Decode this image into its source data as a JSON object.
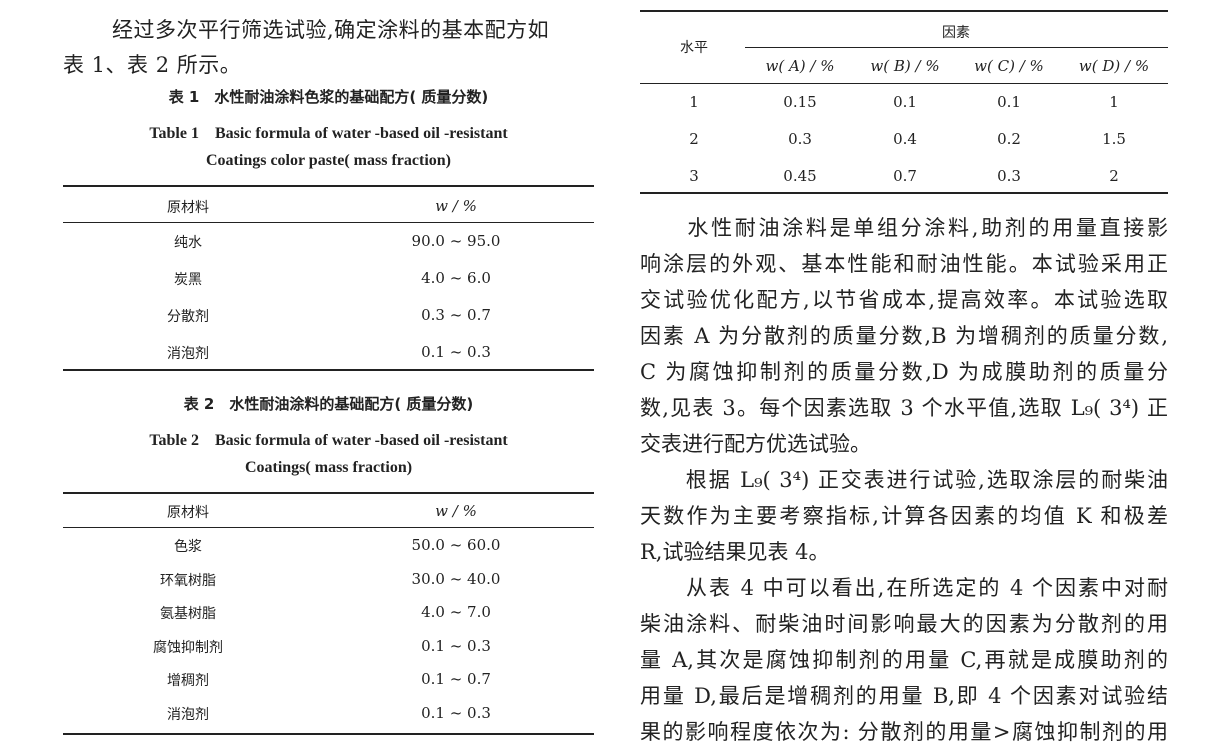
{
  "intro_lines": [
    "经过多次平行筛选试验,确定涂料的基本配方如",
    "表 1、表 2 所示。"
  ],
  "table1": {
    "caption_cn": "表 1　水性耐油涂料色浆的基础配方( 质量分数)",
    "caption_en_1": "Table 1　Basic formula of water -based oil -resistant",
    "caption_en_2": "Coatings color paste( mass fraction)",
    "headers": [
      "原材料",
      "w / %"
    ],
    "rows": [
      [
        "纯水",
        "90.0 ~ 95.0"
      ],
      [
        "炭黑",
        "4.0 ~ 6.0"
      ],
      [
        "分散剂",
        "0.3 ~ 0.7"
      ],
      [
        "消泡剂",
        "0.1 ~ 0.3"
      ]
    ]
  },
  "table2": {
    "caption_cn": "表 2　水性耐油涂料的基础配方( 质量分数)",
    "caption_en_1": "Table 2　Basic formula of water -based oil -resistant",
    "caption_en_2": "Coatings( mass fraction)",
    "headers": [
      "原材料",
      "w / %"
    ],
    "rows": [
      [
        "色浆",
        "50.0 ~ 60.0"
      ],
      [
        "环氧树脂",
        "30.0 ~ 40.0"
      ],
      [
        "氨基树脂",
        "4.0 ~ 7.0"
      ],
      [
        "腐蚀抑制剂",
        "0.1 ~ 0.3"
      ],
      [
        "增稠剂",
        "0.1 ~ 0.7"
      ],
      [
        "消泡剂",
        "0.1 ~ 0.3"
      ]
    ]
  },
  "table3": {
    "level_header": "水平",
    "factor_header": "因素",
    "headers": [
      "w( A) / %",
      "w( B) / %",
      "w( C) / %",
      "w( D) / %"
    ],
    "rows": [
      [
        "1",
        "0.15",
        "0.1",
        "0.1",
        "1"
      ],
      [
        "2",
        "0.3",
        "0.4",
        "0.2",
        "1.5"
      ],
      [
        "3",
        "0.45",
        "0.7",
        "0.3",
        "2"
      ]
    ]
  },
  "right_lines": [
    "　　水性耐油涂料是单组分涂料,助剂的用量直接影",
    "响涂层的外观、基本性能和耐油性能。本试验采用正",
    "交试验优化配方,以节省成本,提高效率。本试验选取",
    "因素 A 为分散剂的质量分数,B 为增稠剂的质量分数,",
    "C 为腐蚀抑制剂的质量分数,D 为成膜助剂的质量分",
    "数,见表 3。每个因素选取 3 个水平值,选取 L₉( 3⁴) 正",
    "交表进行配方优选试验。",
    "　　根据 L₉( 3⁴) 正交表进行试验,选取涂层的耐柴油",
    "天数作为主要考察指标,计算各因素的均值 K 和极差",
    "R,试验结果见表 4。",
    "　　从表 4 中可以看出,在所选定的 4 个因素中对耐",
    "柴油涂料、耐柴油时间影响最大的因素为分散剂的用",
    "量 A,其次是腐蚀抑制剂的用量 C,再就是成膜助剂的",
    "用量 D,最后是增稠剂的用量 B,即 4 个因素对试验结",
    "果的影响程度依次为: 分散剂的用量>腐蚀抑制剂的用"
  ]
}
